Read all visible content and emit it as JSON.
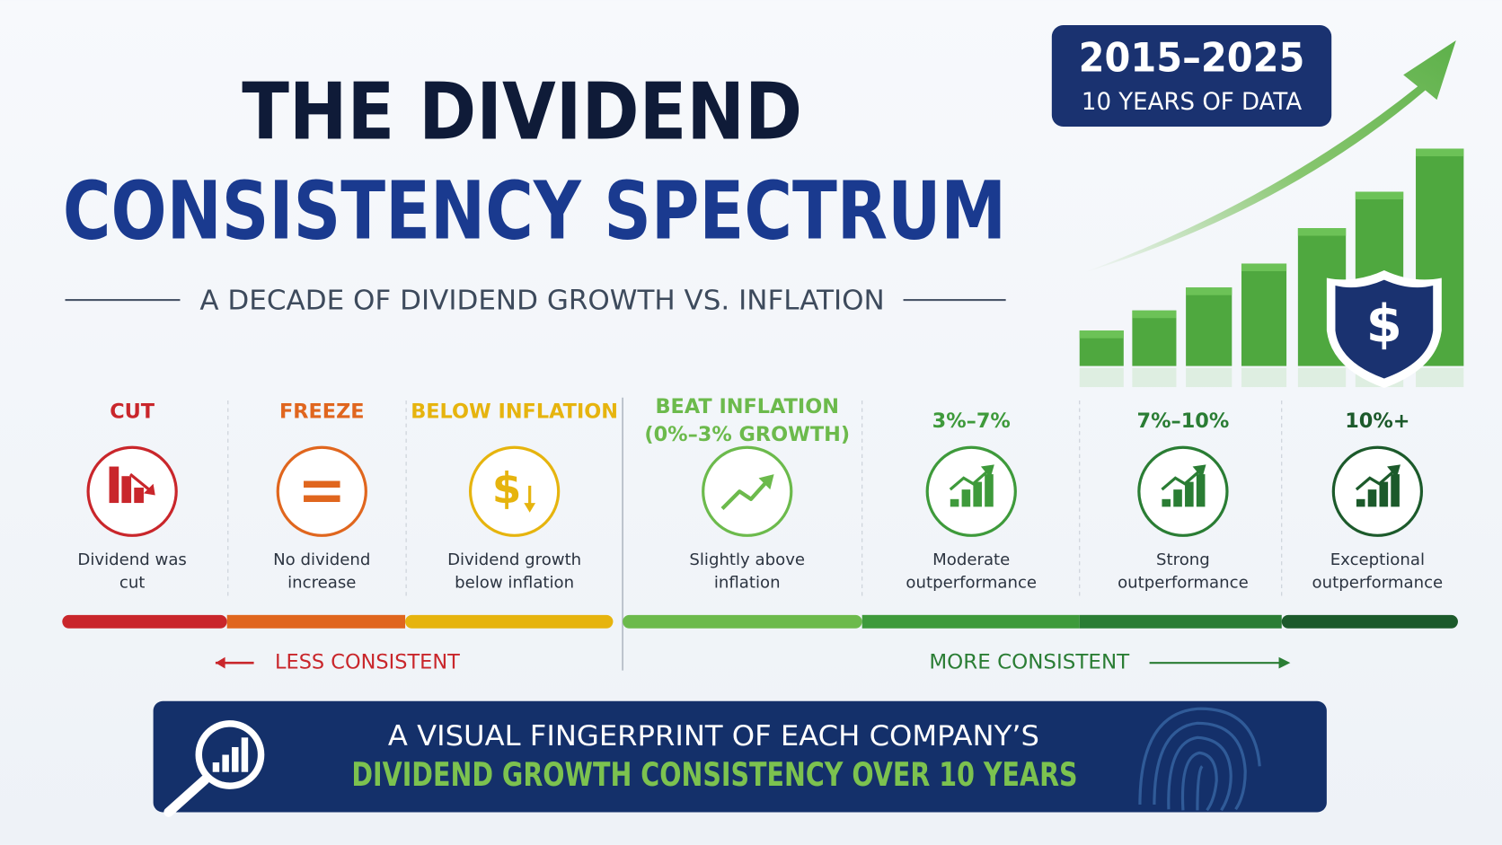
{
  "header": {
    "title_line1": "THE DIVIDEND",
    "title_line2": "CONSISTENCY SPECTRUM",
    "subtitle": "A DECADE OF DIVIDEND GROWTH VS. INFLATION"
  },
  "badge": {
    "years": "2015–2025",
    "caption": "10 YEARS OF DATA"
  },
  "shield_symbol": "$",
  "spectrum": {
    "segments": [
      {
        "label": [
          "CUT"
        ],
        "description": [
          "Dividend was",
          "cut"
        ],
        "color": "#c9262b"
      },
      {
        "label": [
          "FREEZE"
        ],
        "description": [
          "No dividend",
          "increase"
        ],
        "color": "#e0661e"
      },
      {
        "label": [
          "BELOW INFLATION"
        ],
        "description": [
          "Dividend growth",
          "below inflation"
        ],
        "color": "#e6b40e",
        "icon_text": "$"
      },
      {
        "label": [
          "BEAT INFLATION",
          "(0%–3% GROWTH)"
        ],
        "description": [
          "Slightly above",
          "inflation"
        ],
        "color": "#6cba4c"
      },
      {
        "label": [
          "3%–7%"
        ],
        "description": [
          "Moderate",
          "outperformance"
        ],
        "color": "#3e9a3b"
      },
      {
        "label": [
          "7%–10%"
        ],
        "description": [
          "Strong",
          "outperformance"
        ],
        "color": "#2a7d34"
      },
      {
        "label": [
          "10%+"
        ],
        "description": [
          "Exceptional",
          "outperformance"
        ],
        "color": "#1c5a2b"
      }
    ]
  },
  "axis": {
    "left": "LESS CONSISTENT",
    "right": "MORE CONSISTENT"
  },
  "banner": {
    "line1": "A VISUAL FINGERPRINT OF EACH COMPANY’S",
    "line2": "DIVIDEND GROWTH CONSISTENCY OVER 10 YEARS"
  }
}
